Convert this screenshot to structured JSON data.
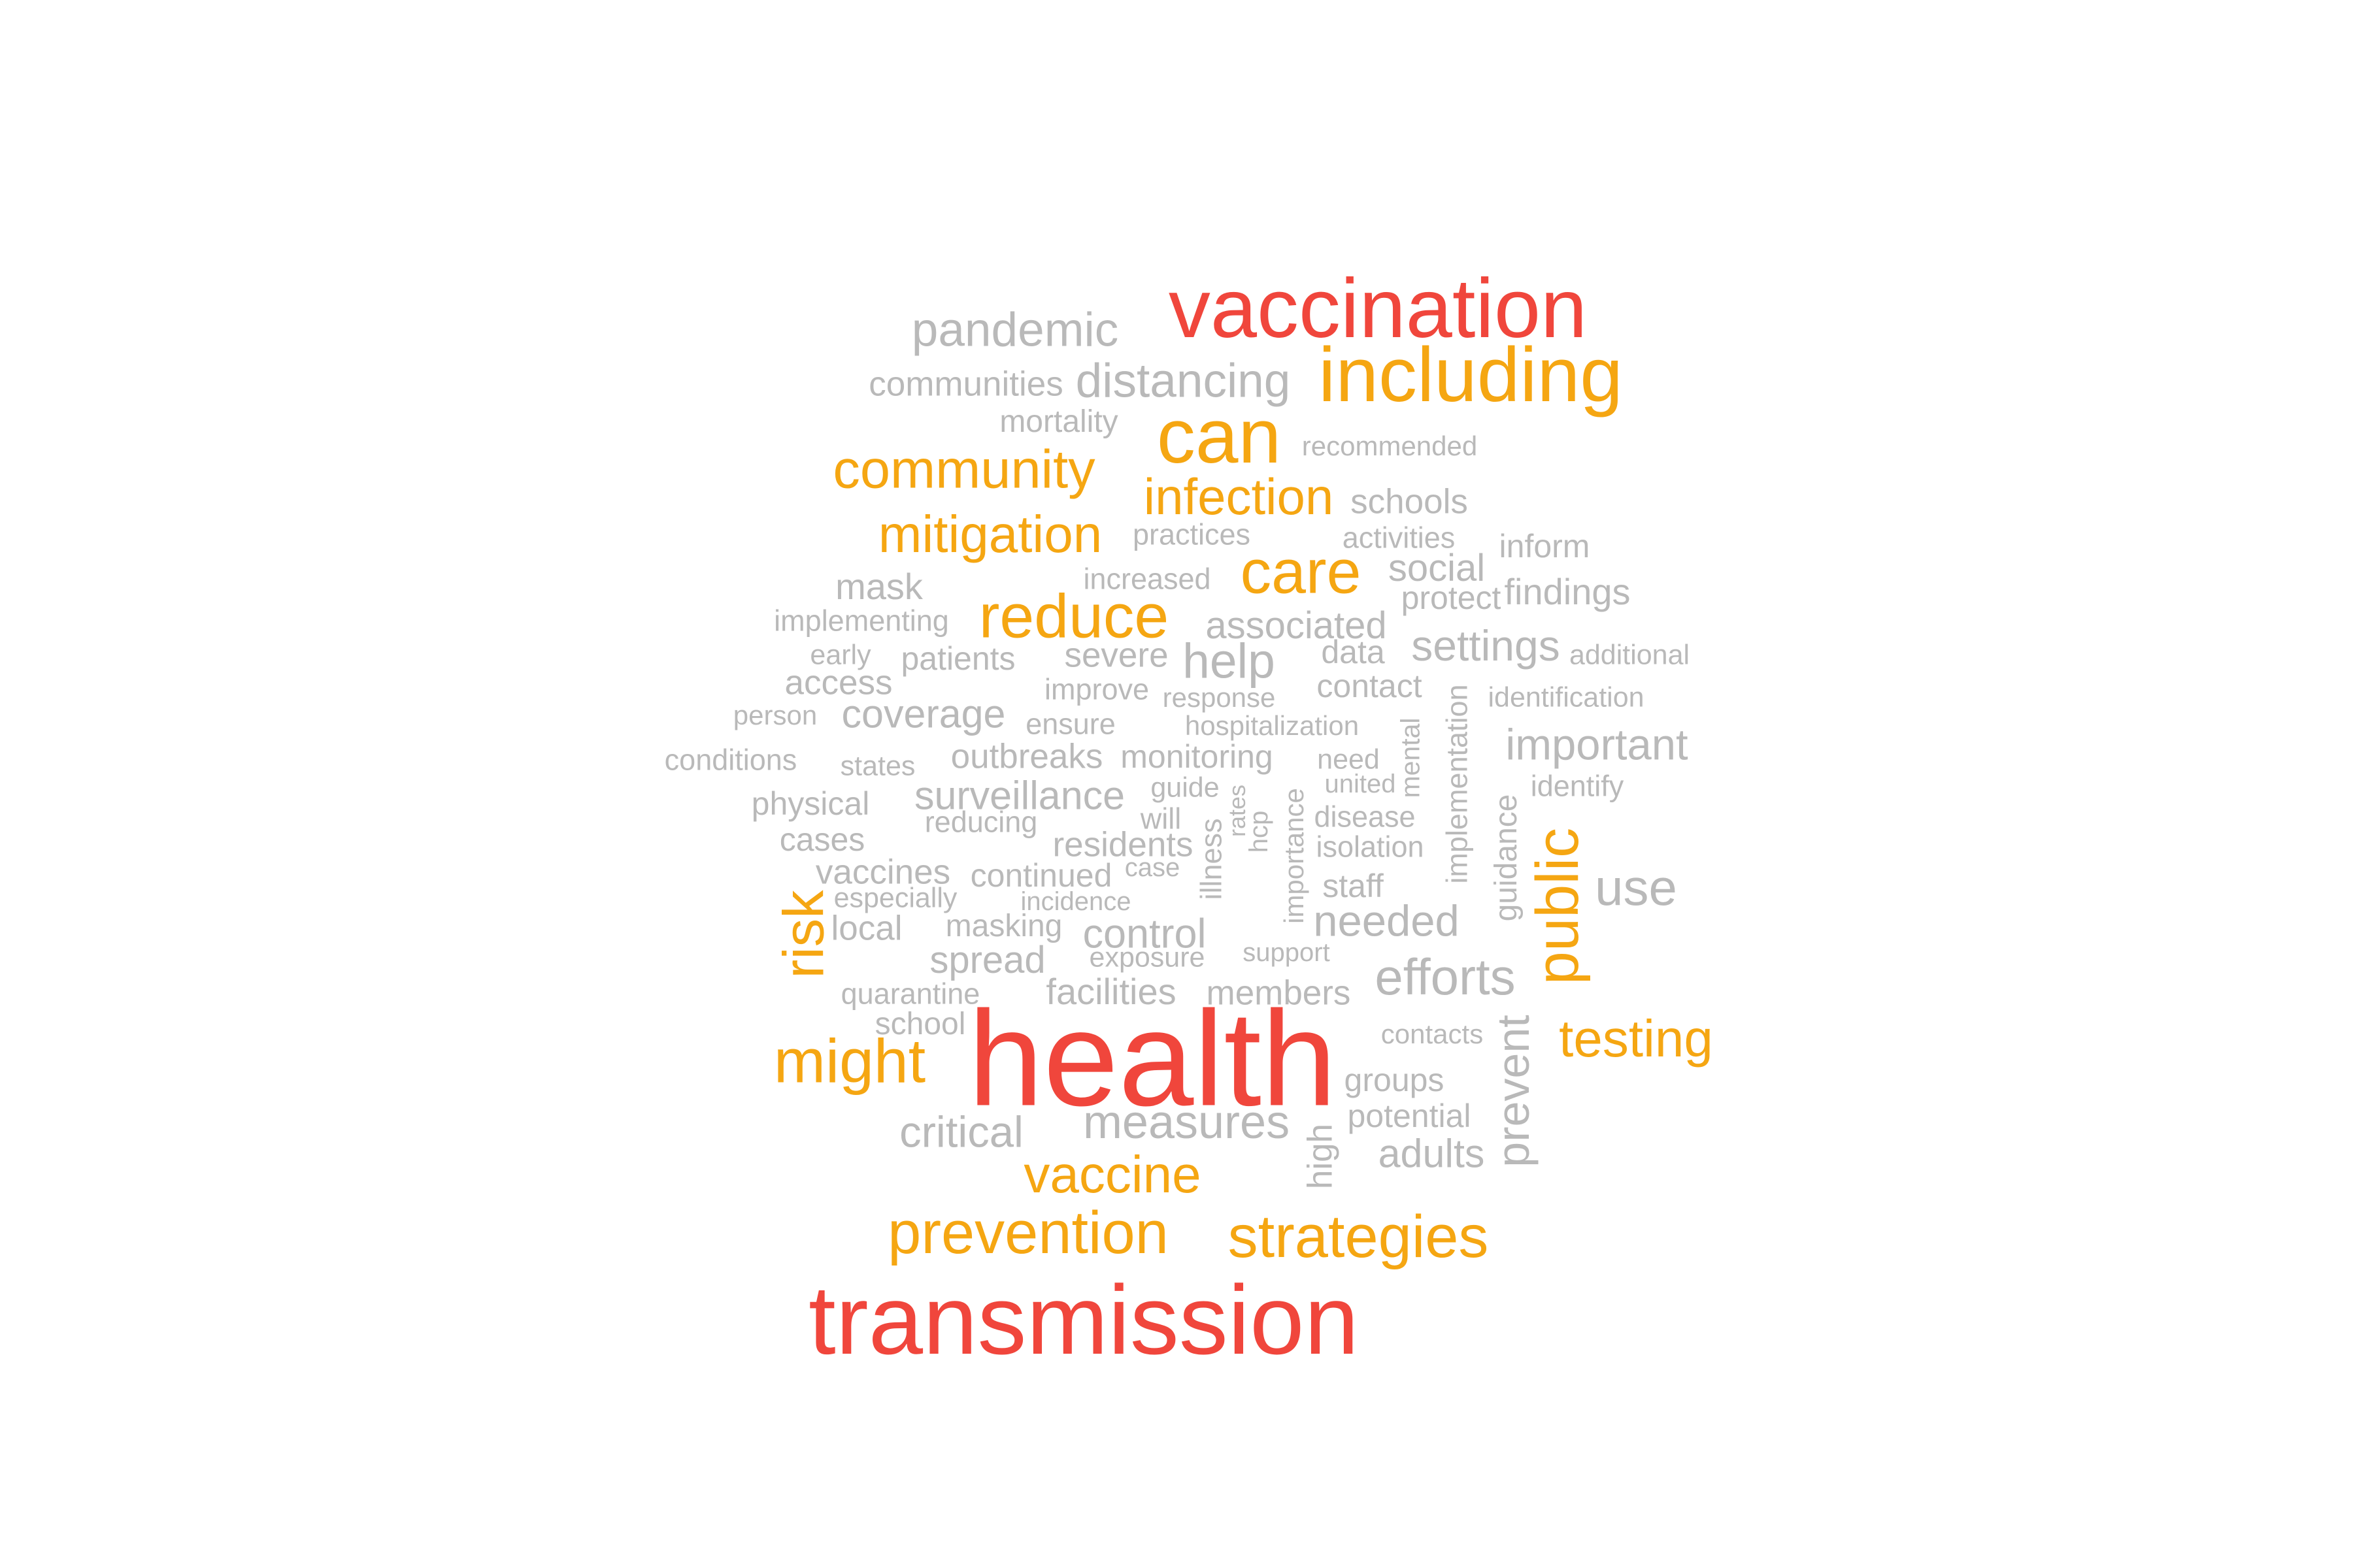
{
  "colors": {
    "high": "#f0463c",
    "mid": "#f5a612",
    "low": "#b9b9b9",
    "background": "#ffffff"
  },
  "words": {
    "health": "health",
    "transmission": "transmission",
    "vaccination": "vaccination",
    "including": "including",
    "can": "can",
    "community": "community",
    "infection": "infection",
    "mitigation": "mitigation",
    "care": "care",
    "reduce": "reduce",
    "public": "public",
    "risk": "risk",
    "might": "might",
    "testing": "testing",
    "vaccine": "vaccine",
    "prevention": "prevention",
    "strategies": "strategies",
    "pandemic": "pandemic",
    "communities": "communities",
    "distancing": "distancing",
    "mortality": "mortality",
    "recommended": "recommended",
    "schools": "schools",
    "practices": "practices",
    "activities": "activities",
    "inform": "inform",
    "mask": "mask",
    "increased": "increased",
    "social": "social",
    "findings": "findings",
    "implementing": "implementing",
    "associated": "associated",
    "protect": "protect",
    "early": "early",
    "patients": "patients",
    "severe": "severe",
    "help": "help",
    "data": "data",
    "settings": "settings",
    "additional": "additional",
    "access": "access",
    "improve": "improve",
    "response": "response",
    "contact": "contact",
    "identification": "identification",
    "person": "person",
    "coverage": "coverage",
    "ensure": "ensure",
    "hospitalization": "hospitalization",
    "mental": "mental",
    "implementation": "implementation",
    "important": "important",
    "conditions": "conditions",
    "states": "states",
    "outbreaks": "outbreaks",
    "monitoring": "monitoring",
    "need": "need",
    "united": "united",
    "identify": "identify",
    "physical": "physical",
    "surveillance": "surveillance",
    "guide": "guide",
    "rates": "rates",
    "importance": "importance",
    "guidance": "guidance",
    "reducing": "reducing",
    "will": "will",
    "hcp": "hcp",
    "disease": "disease",
    "cases": "cases",
    "residents": "residents",
    "illness": "illness",
    "isolation": "isolation",
    "vaccines": "vaccines",
    "continued": "continued",
    "case": "case",
    "staff": "staff",
    "use": "use",
    "especially": "especially",
    "incidence": "incidence",
    "local": "local",
    "masking": "masking",
    "control": "control",
    "needed": "needed",
    "spread": "spread",
    "exposure": "exposure",
    "support": "support",
    "efforts": "efforts",
    "quarantine": "quarantine",
    "facilities": "facilities",
    "members": "members",
    "school": "school",
    "contacts": "contacts",
    "prevent": "prevent",
    "groups": "groups",
    "critical": "critical",
    "measures": "measures",
    "potential": "potential",
    "high": "high",
    "adults": "adults"
  }
}
